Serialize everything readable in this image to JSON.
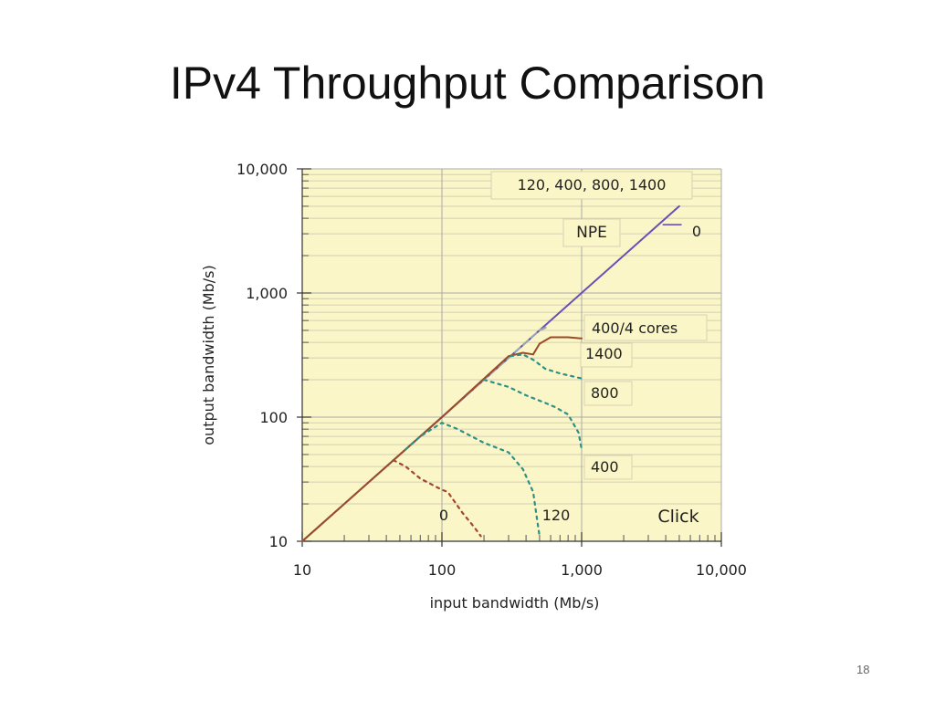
{
  "slide": {
    "title": "IPv4 Throughput Comparison",
    "number": "18"
  },
  "colors": {
    "background": "#fbf6c8",
    "grid_major": "#a9a9a9",
    "grid_minor": "#d2cfb5",
    "npe": "#6a4fb3",
    "click_measured": "#9b4a26",
    "click_predicted_0": "#a0472a",
    "click_predicted_other": "#2e8f86",
    "click_predicted_1400": "#9aa7b0"
  },
  "chart_data": {
    "type": "line",
    "xscale": "log",
    "yscale": "log",
    "xlabel": "input bandwidth (Mb/s)",
    "ylabel": "output bandwidth (Mb/s)",
    "xlim": [
      10,
      10000
    ],
    "ylim": [
      10,
      10000
    ],
    "xticks": [
      "10",
      "100",
      "1,000",
      "10,000"
    ],
    "yticks": [
      "10",
      "100",
      "1,000",
      "10,000"
    ],
    "grid": true,
    "annotations": [
      "120, 400, 800, 1400",
      "NPE",
      "0",
      "400/4 cores",
      "1400",
      "800",
      "400",
      "0",
      "120",
      "Click"
    ],
    "series": [
      {
        "name": "NPE",
        "style": "solid",
        "color_key": "npe",
        "points": [
          [
            10,
            10
          ],
          [
            5000,
            5000
          ]
        ]
      },
      {
        "style": "dashed",
        "color_key": "click_predicted_1400",
        "points": [
          [
            10,
            10
          ],
          [
            100,
            100
          ],
          [
            300,
            300
          ],
          [
            500,
            500
          ],
          [
            560,
            530
          ]
        ]
      },
      {
        "style": "solid",
        "color_key": "click_measured",
        "points": [
          [
            10,
            10
          ],
          [
            100,
            100
          ],
          [
            300,
            310
          ],
          [
            380,
            330
          ],
          [
            450,
            320
          ],
          [
            500,
            390
          ],
          [
            600,
            440
          ],
          [
            800,
            440
          ],
          [
            1000,
            430
          ]
        ]
      },
      {
        "style": "dotted",
        "color_key": "click_predicted_other",
        "points": [
          [
            310,
            310
          ],
          [
            380,
            320
          ],
          [
            450,
            290
          ],
          [
            550,
            245
          ],
          [
            700,
            225
          ],
          [
            1000,
            205
          ]
        ]
      },
      {
        "style": "dotted",
        "color_key": "click_predicted_other",
        "points": [
          [
            200,
            200
          ],
          [
            300,
            175
          ],
          [
            400,
            150
          ],
          [
            550,
            130
          ],
          [
            650,
            120
          ],
          [
            800,
            105
          ],
          [
            950,
            75
          ],
          [
            1000,
            55
          ]
        ]
      },
      {
        "style": "dotted",
        "color_key": "click_predicted_other",
        "points": [
          [
            55,
            55
          ],
          [
            70,
            70
          ],
          [
            100,
            90
          ],
          [
            130,
            80
          ],
          [
            200,
            62
          ],
          [
            300,
            52
          ],
          [
            380,
            38
          ],
          [
            450,
            25
          ],
          [
            480,
            15
          ],
          [
            500,
            11
          ]
        ]
      },
      {
        "style": "dotted",
        "color_key": "click_predicted_0",
        "points": [
          [
            45,
            45
          ],
          [
            55,
            40
          ],
          [
            70,
            32
          ],
          [
            100,
            26
          ],
          [
            110,
            25
          ],
          [
            140,
            17
          ],
          [
            170,
            13
          ],
          [
            190,
            11
          ]
        ]
      }
    ]
  }
}
